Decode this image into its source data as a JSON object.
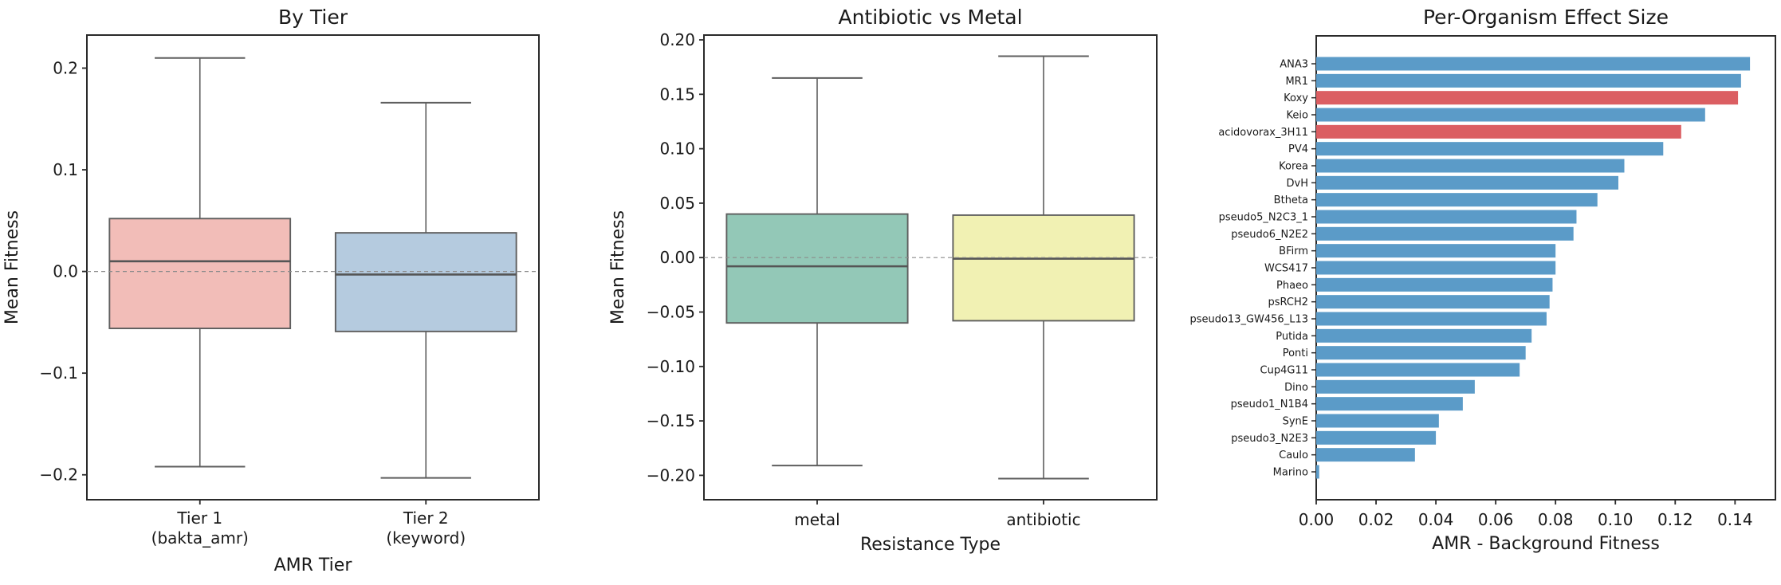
{
  "page": {
    "background": "#ffffff"
  },
  "palette": {
    "spine": "#2a2a2a",
    "text": "#1a1a1a",
    "box_line": "#5e5e5e",
    "median_line": "#555555",
    "zero_line": "#8c8c8c",
    "bar_blue": "#5B9BC8",
    "bar_red": "#DB5E62"
  },
  "chart_data": [
    {
      "type": "box",
      "title": "By Tier",
      "xlabel": "AMR Tier",
      "ylabel": "Mean Fitness",
      "ylim": [
        -0.2245,
        0.2325
      ],
      "grid": false,
      "zero_line": true,
      "yticks": [
        {
          "v": 0.2,
          "label": "0.2"
        },
        {
          "v": 0.1,
          "label": "0.1"
        },
        {
          "v": 0.0,
          "label": "0.0"
        },
        {
          "v": -0.1,
          "label": "−0.1"
        },
        {
          "v": -0.2,
          "label": "−0.2"
        }
      ],
      "boxes": [
        {
          "category_lines": [
            "Tier 1",
            "(bakta_amr)"
          ],
          "whisker_low": -0.192,
          "q1": -0.056,
          "median": 0.01,
          "q3": 0.052,
          "whisker_high": 0.21,
          "fill": "#F2BDB8"
        },
        {
          "category_lines": [
            "Tier 2",
            "(keyword)"
          ],
          "whisker_low": -0.203,
          "q1": -0.059,
          "median": -0.003,
          "q3": 0.038,
          "whisker_high": 0.166,
          "fill": "#B5CBDF"
        }
      ]
    },
    {
      "type": "box",
      "title": "Antibiotic vs Metal",
      "xlabel": "Resistance Type",
      "ylabel": "Mean Fitness",
      "ylim": [
        -0.2224,
        0.2044
      ],
      "grid": false,
      "zero_line": true,
      "yticks": [
        {
          "v": 0.2,
          "label": "0.20"
        },
        {
          "v": 0.15,
          "label": "0.15"
        },
        {
          "v": 0.1,
          "label": "0.10"
        },
        {
          "v": 0.05,
          "label": "0.05"
        },
        {
          "v": 0.0,
          "label": "0.00"
        },
        {
          "v": -0.05,
          "label": "−0.05"
        },
        {
          "v": -0.1,
          "label": "−0.10"
        },
        {
          "v": -0.15,
          "label": "−0.15"
        },
        {
          "v": -0.2,
          "label": "−0.20"
        }
      ],
      "boxes": [
        {
          "category_lines": [
            "metal"
          ],
          "whisker_low": -0.191,
          "q1": -0.06,
          "median": -0.008,
          "q3": 0.04,
          "whisker_high": 0.165,
          "fill": "#93C8B7"
        },
        {
          "category_lines": [
            "antibiotic"
          ],
          "whisker_low": -0.203,
          "q1": -0.058,
          "median": -0.001,
          "q3": 0.039,
          "whisker_high": 0.185,
          "fill": "#F1F1B3"
        }
      ]
    },
    {
      "type": "bar",
      "orientation": "horizontal",
      "title": "Per-Organism Effect Size",
      "xlabel": "AMR - Background Fitness",
      "xlim": [
        0,
        0.1535
      ],
      "grid": false,
      "xticks": [
        {
          "v": 0.0,
          "label": "0.00"
        },
        {
          "v": 0.02,
          "label": "0.02"
        },
        {
          "v": 0.04,
          "label": "0.04"
        },
        {
          "v": 0.06,
          "label": "0.06"
        },
        {
          "v": 0.08,
          "label": "0.08"
        },
        {
          "v": 0.1,
          "label": "0.10"
        },
        {
          "v": 0.12,
          "label": "0.12"
        },
        {
          "v": 0.14,
          "label": "0.14"
        }
      ],
      "bars": [
        {
          "label": "ANA3",
          "value": 0.145,
          "highlight": false
        },
        {
          "label": "MR1",
          "value": 0.142,
          "highlight": false
        },
        {
          "label": "Koxy",
          "value": 0.141,
          "highlight": true
        },
        {
          "label": "Keio",
          "value": 0.13,
          "highlight": false
        },
        {
          "label": "acidovorax_3H11",
          "value": 0.122,
          "highlight": true
        },
        {
          "label": "PV4",
          "value": 0.116,
          "highlight": false
        },
        {
          "label": "Korea",
          "value": 0.103,
          "highlight": false
        },
        {
          "label": "DvH",
          "value": 0.101,
          "highlight": false
        },
        {
          "label": "Btheta",
          "value": 0.094,
          "highlight": false
        },
        {
          "label": "pseudo5_N2C3_1",
          "value": 0.087,
          "highlight": false
        },
        {
          "label": "pseudo6_N2E2",
          "value": 0.086,
          "highlight": false
        },
        {
          "label": "BFirm",
          "value": 0.08,
          "highlight": false
        },
        {
          "label": "WCS417",
          "value": 0.08,
          "highlight": false
        },
        {
          "label": "Phaeo",
          "value": 0.079,
          "highlight": false
        },
        {
          "label": "psRCH2",
          "value": 0.078,
          "highlight": false
        },
        {
          "label": "pseudo13_GW456_L13",
          "value": 0.077,
          "highlight": false
        },
        {
          "label": "Putida",
          "value": 0.072,
          "highlight": false
        },
        {
          "label": "Ponti",
          "value": 0.07,
          "highlight": false
        },
        {
          "label": "Cup4G11",
          "value": 0.068,
          "highlight": false
        },
        {
          "label": "Dino",
          "value": 0.053,
          "highlight": false
        },
        {
          "label": "pseudo1_N1B4",
          "value": 0.049,
          "highlight": false
        },
        {
          "label": "SynE",
          "value": 0.041,
          "highlight": false
        },
        {
          "label": "pseudo3_N2E3",
          "value": 0.04,
          "highlight": false
        },
        {
          "label": "Caulo",
          "value": 0.033,
          "highlight": false
        },
        {
          "label": "Marino",
          "value": 0.001,
          "highlight": false
        }
      ]
    }
  ]
}
